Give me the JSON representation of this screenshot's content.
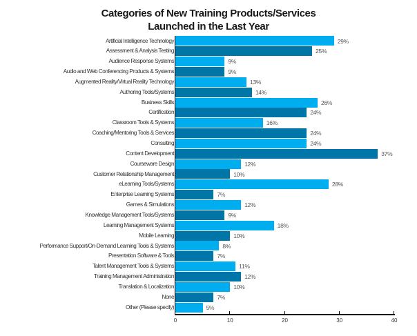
{
  "chart_data": {
    "type": "bar",
    "orientation": "horizontal",
    "title": "Categories of New Training Products/Services Launched in the Last Year",
    "title_lines": [
      "Categories of New Training Products/Services",
      "Launched in the Last Year"
    ],
    "xlabel": "",
    "ylabel": "",
    "xlim": [
      0,
      40
    ],
    "x_ticks": [
      0,
      10,
      20,
      30,
      40
    ],
    "grid": false,
    "legend": null,
    "value_suffix": "%",
    "colors": {
      "light": "#00AEEF",
      "dark": "#0075A8"
    },
    "categories": [
      "Artificial Intelligence Technology",
      "Assessment & Analysis Testing",
      "Audience Response Systems",
      "Audio and Web Conferencing Products & Systems",
      "Augmented Reality/Virtual Reality Technology",
      "Authoring Tools/Systems",
      "Business Skills",
      "Certification",
      "Classroom Tools & Systems",
      "Coaching/Mentoring Tools & Services",
      "Consulting",
      "Content Development",
      "Courseware Design",
      "Customer Relationship Management",
      "eLearning Tools/Systems",
      "Enterprise Learning Systems",
      "Games & Simulations",
      "Knowledge Management Tools/Systems",
      "Learning Management Systems",
      "Mobile Learning",
      "Performance Support/On-Demand Learning Tools & Systems",
      "Presentation Software & Tools",
      "Talent Management Tools & Systems",
      "Training Management Administration",
      "Translation & Localization",
      "None",
      "Other (Please specify)"
    ],
    "values": [
      29,
      25,
      9,
      9,
      13,
      14,
      26,
      24,
      16,
      24,
      24,
      37,
      12,
      10,
      28,
      7,
      12,
      9,
      18,
      10,
      8,
      7,
      11,
      12,
      10,
      7,
      5
    ],
    "bar_colors": [
      "light",
      "dark",
      "light",
      "dark",
      "light",
      "dark",
      "light",
      "dark",
      "light",
      "dark",
      "light",
      "dark",
      "light",
      "dark",
      "light",
      "dark",
      "light",
      "dark",
      "light",
      "dark",
      "light",
      "dark",
      "light",
      "dark",
      "light",
      "dark",
      "light"
    ]
  }
}
